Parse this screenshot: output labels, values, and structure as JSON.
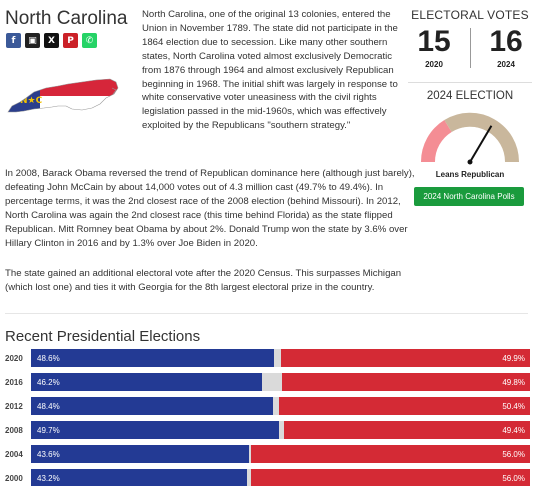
{
  "state": {
    "name": "North Carolina"
  },
  "share": {
    "buttons": [
      {
        "icon": "facebook-icon",
        "glyph": "f",
        "color": "#3b5998"
      },
      {
        "icon": "print-icon",
        "glyph": "▣",
        "color": "#222222"
      },
      {
        "icon": "x-icon",
        "glyph": "X",
        "color": "#111111"
      },
      {
        "icon": "pinterest-icon",
        "glyph": "P",
        "color": "#cb2027"
      },
      {
        "icon": "whatsapp-icon",
        "glyph": "✆",
        "color": "#25d366"
      }
    ]
  },
  "intro": "North Carolina, one of the original 13 colonies, entered the Union in November 1789. The state did not participate in the 1864 election due to secession. Like many other southern states, North Carolina voted almost exclusively Democratic from 1876 through 1964 and almost exclusively Republican beginning in 1968. The initial shift was largely in response to white conservative voter uneasiness with the civil rights legislation passed in the mid-1960s, which was effectively exploited by the Republicans \"southern strategy.\"",
  "electoral_votes": {
    "title": "ELECTORAL VOTES",
    "items": [
      {
        "value": "15",
        "year": "2020"
      },
      {
        "value": "16",
        "year": "2024"
      }
    ]
  },
  "election_2024": {
    "title": "2024 ELECTION",
    "rating": "Leans Republican",
    "gauge_level": 0.67,
    "polls_button": "2024 North Carolina Polls"
  },
  "paragraphs": [
    "In 2008, Barack Obama reversed the trend of Republican dominance here (although just barely), defeating John McCain by about 14,000 votes out of 4.3 million cast (49.7% to 49.4%). In percentage terms, it was the 2nd closest race of the 2008 election (behind Missouri). In 2012, North Carolina was again the 2nd closest race (this time behind Florida) as the state flipped Republican. Mitt Romney beat Obama by about 2%. Donald Trump won the state by 3.6% over Hillary Clinton in 2016 and by 1.3% over Joe Biden in 2020.",
    "The state gained an additional electoral vote after the 2020 Census. This surpasses Michigan (which lost one) and ties it with Georgia for the 8th largest electoral prize in the country."
  ],
  "recent": {
    "title": "Recent Presidential Elections",
    "rows": [
      {
        "year": "2020",
        "dem": 48.6,
        "rep": 49.9,
        "dem_label": "48.6%",
        "rep_label": "49.9%"
      },
      {
        "year": "2016",
        "dem": 46.2,
        "rep": 49.8,
        "dem_label": "46.2%",
        "rep_label": "49.8%"
      },
      {
        "year": "2012",
        "dem": 48.4,
        "rep": 50.4,
        "dem_label": "48.4%",
        "rep_label": "50.4%"
      },
      {
        "year": "2008",
        "dem": 49.7,
        "rep": 49.4,
        "dem_label": "49.7%",
        "rep_label": "49.4%"
      },
      {
        "year": "2004",
        "dem": 43.6,
        "rep": 56.0,
        "dem_label": "43.6%",
        "rep_label": "56.0%"
      },
      {
        "year": "2000",
        "dem": 43.2,
        "rep": 56.0,
        "dem_label": "43.2%",
        "rep_label": "56.0%"
      }
    ]
  },
  "colors": {
    "dem": "#233a94",
    "rep": "#d42a35",
    "toss": "#dadada",
    "polls_button": "#1a9b3d"
  }
}
